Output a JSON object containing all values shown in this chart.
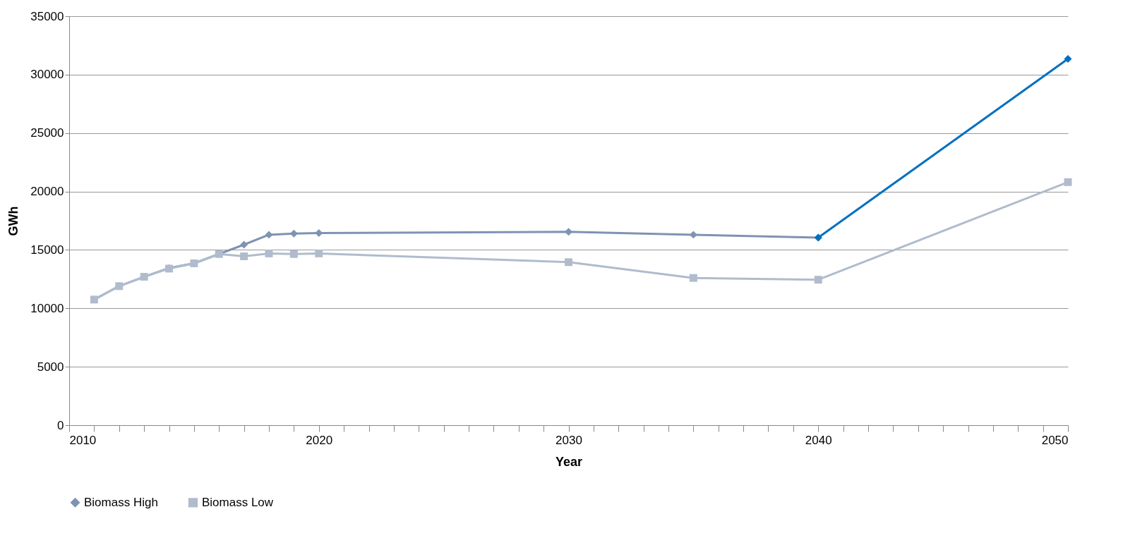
{
  "chart_data": {
    "type": "line",
    "xlabel": "Year",
    "ylabel": "GWh",
    "xlim": [
      2010,
      2050
    ],
    "xticks": [
      2010,
      {
        "value": 2011,
        "label": null
      },
      {
        "value": 2012,
        "label": null
      },
      {
        "value": 2013,
        "label": null
      },
      {
        "value": 2014,
        "label": null
      },
      {
        "value": 2015,
        "label": null
      },
      {
        "value": 2016,
        "label": null
      },
      {
        "value": 2017,
        "label": null
      },
      {
        "value": 2018,
        "label": null
      },
      {
        "value": 2019,
        "label": null
      },
      2020,
      {
        "value": 2021,
        "label": null
      },
      {
        "value": 2022,
        "label": null
      },
      {
        "value": 2023,
        "label": null
      },
      {
        "value": 2024,
        "label": null
      },
      {
        "value": 2025,
        "label": null
      },
      {
        "value": 2026,
        "label": null
      },
      {
        "value": 2027,
        "label": null
      },
      {
        "value": 2028,
        "label": null
      },
      {
        "value": 2029,
        "label": null
      },
      2030,
      {
        "value": 2031,
        "label": null
      },
      {
        "value": 2032,
        "label": null
      },
      {
        "value": 2033,
        "label": null
      },
      {
        "value": 2034,
        "label": null
      },
      {
        "value": 2035,
        "label": null
      },
      {
        "value": 2036,
        "label": null
      },
      {
        "value": 2037,
        "label": null
      },
      {
        "value": 2038,
        "label": null
      },
      {
        "value": 2039,
        "label": null
      },
      2040,
      {
        "value": 2041,
        "label": null
      },
      {
        "value": 2042,
        "label": null
      },
      {
        "value": 2043,
        "label": null
      },
      {
        "value": 2044,
        "label": null
      },
      {
        "value": 2045,
        "label": null
      },
      {
        "value": 2046,
        "label": null
      },
      {
        "value": 2047,
        "label": null
      },
      {
        "value": 2048,
        "label": null
      },
      {
        "value": 2049,
        "label": null
      },
      2050
    ],
    "ylim": [
      0,
      35000
    ],
    "yticks": [
      0,
      5000,
      10000,
      15000,
      20000,
      25000,
      30000,
      35000
    ],
    "grid": "y",
    "legend": "bottom",
    "line_style": "solid",
    "series": [
      {
        "name": "Biomass High",
        "color": "#7f93b2",
        "marker": "diamond",
        "x": [
          2011,
          2012,
          2013,
          2014,
          2015,
          2016,
          2017,
          2018,
          2019,
          2020,
          2030,
          2035,
          2040
        ],
        "values": [
          10750,
          11900,
          12700,
          13450,
          13850,
          14650,
          15450,
          16300,
          16400,
          16450,
          16550,
          16300,
          16050
        ]
      },
      {
        "name": "Biomass Low",
        "color": "#b0bccc",
        "marker": "square",
        "x": [
          2011,
          2012,
          2013,
          2014,
          2015,
          2016,
          2017,
          2018,
          2019,
          2020,
          2030,
          2035,
          2040,
          2050
        ],
        "values": [
          10750,
          11900,
          12700,
          13400,
          13850,
          14650,
          14450,
          14700,
          14650,
          14700,
          13950,
          12600,
          12450,
          20800
        ]
      },
      {
        "color": "#0070c0",
        "marker": "diamond",
        "x": [
          2040,
          2050
        ],
        "values": [
          16050,
          31350
        ]
      }
    ]
  }
}
